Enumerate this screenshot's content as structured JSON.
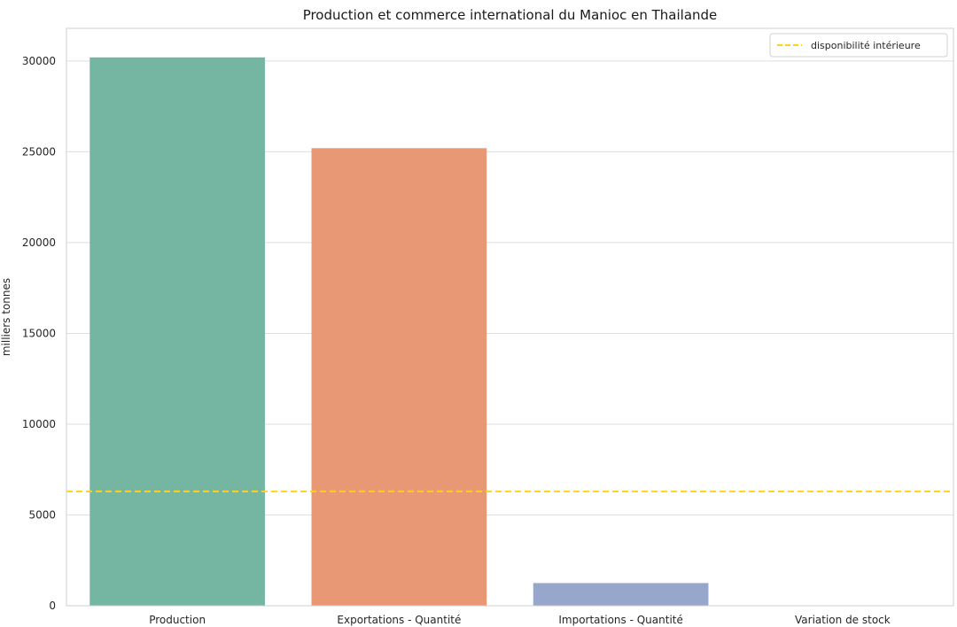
{
  "chart_data": {
    "type": "bar",
    "title": "Production et commerce international du Manioc en Thailande",
    "xlabel": "",
    "ylabel": "milliers tonnes",
    "categories": [
      "Production",
      "Exportations - Quantité",
      "Importations - Quantité",
      "Variation de stock"
    ],
    "values": [
      30200,
      25200,
      1250,
      0
    ],
    "bar_colors": [
      "#74b6a1",
      "#e99875",
      "#96a7cb",
      "#e78ac3"
    ],
    "ylim": [
      0,
      31800
    ],
    "yticks": [
      0,
      5000,
      10000,
      15000,
      20000,
      25000,
      30000
    ],
    "ytick_labels": [
      "0",
      "5000",
      "10000",
      "15000",
      "20000",
      "25000",
      "30000"
    ],
    "grid": true,
    "reference_line": {
      "label": "disponibilité intérieure",
      "value": 6300,
      "color": "#ffd21f",
      "style": "dashed"
    },
    "legend_position": "top-right"
  }
}
